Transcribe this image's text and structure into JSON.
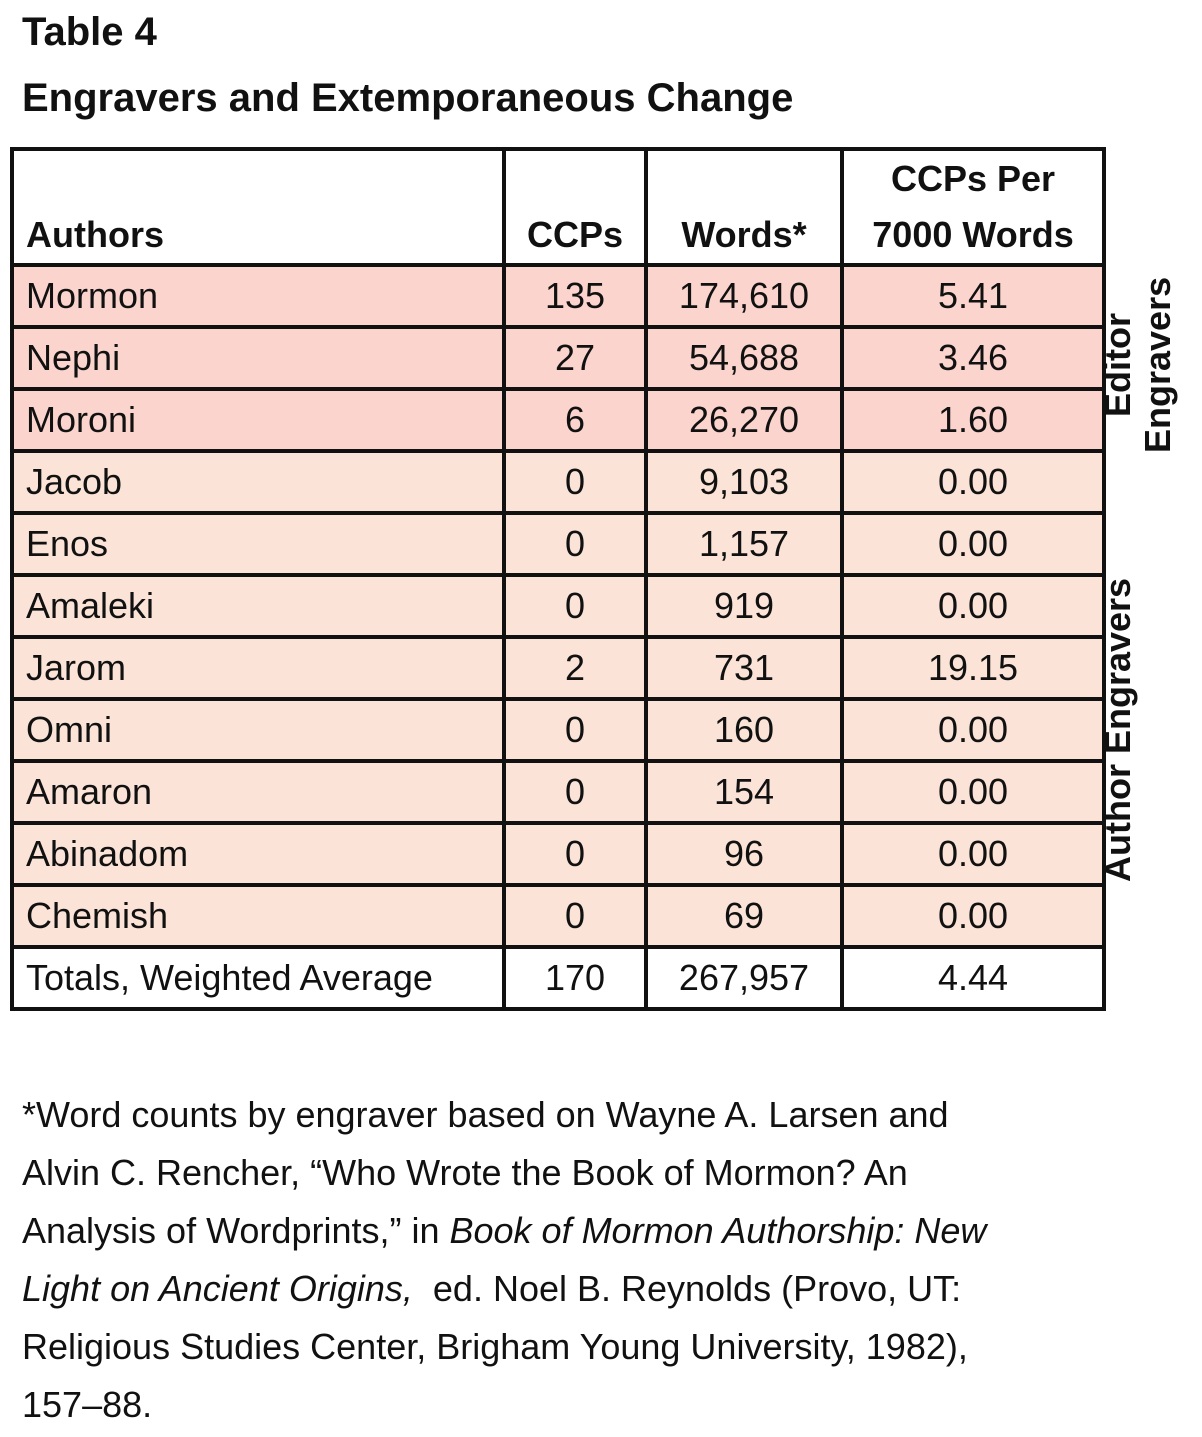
{
  "title": "Table 4",
  "subtitle": "Engravers and Extemporaneous Change",
  "columns": {
    "authors": "Authors",
    "ccps": "CCPs",
    "words": "Words*",
    "rate_line1": "CCPs Per",
    "rate_line2": "7000 Words"
  },
  "rows": [
    {
      "author": "Mormon",
      "ccps": "135",
      "words": "174,610",
      "rate": "5.41"
    },
    {
      "author": "Nephi",
      "ccps": "27",
      "words": "54,688",
      "rate": "3.46"
    },
    {
      "author": "Moroni",
      "ccps": "6",
      "words": "26,270",
      "rate": "1.60"
    },
    {
      "author": "Jacob",
      "ccps": "0",
      "words": "9,103",
      "rate": "0.00"
    },
    {
      "author": "Enos",
      "ccps": "0",
      "words": "1,157",
      "rate": "0.00"
    },
    {
      "author": "Amaleki",
      "ccps": "0",
      "words": "919",
      "rate": "0.00"
    },
    {
      "author": "Jarom",
      "ccps": "2",
      "words": "731",
      "rate": "19.15"
    },
    {
      "author": "Omni",
      "ccps": "0",
      "words": "160",
      "rate": "0.00"
    },
    {
      "author": "Amaron",
      "ccps": "0",
      "words": "154",
      "rate": "0.00"
    },
    {
      "author": "Abinadom",
      "ccps": "0",
      "words": "96",
      "rate": "0.00"
    },
    {
      "author": "Chemish",
      "ccps": "0",
      "words": "69",
      "rate": "0.00"
    }
  ],
  "totals": {
    "label": "Totals, Weighted Average",
    "ccps": "170",
    "words": "267,957",
    "rate": "4.44"
  },
  "side_labels": {
    "editor_line1": "Editor",
    "editor_line2": "Engravers",
    "author": "Author Engravers"
  },
  "colors": {
    "editor_row": "#fbd4cd",
    "author_row": "#fbe3d7"
  },
  "footnote": {
    "line1": "*Word counts by engraver based on Wayne A. Larsen and",
    "line2": "Alvin C. Rencher, “Who Wrote the Book of Mormon? An",
    "line3_prefix": "Analysis of Wordprints,” in ",
    "line3_italic": "Book of Mormon Authorship: New",
    "line4_italic": "Light on Ancient Origins,",
    "line4_suffix": "  ed. Noel B. Reynolds (Provo, UT:",
    "line5": "Religious Studies Center, Brigham Young University, 1982),",
    "line6": "157–88."
  }
}
